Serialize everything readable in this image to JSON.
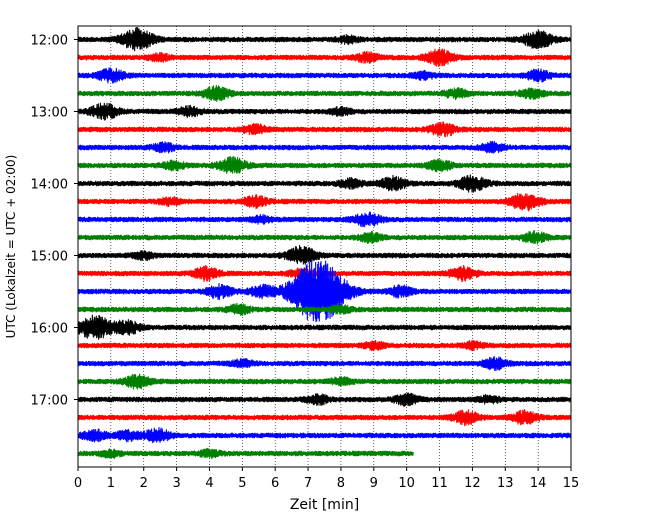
{
  "chart_data": {
    "type": "line",
    "title": "",
    "xlabel": "Zeit  [min]",
    "ylabel": "UTC (Lokalzeit = UTC + 02:00)",
    "xlim": [
      0,
      15
    ],
    "x_ticks": [
      0,
      1,
      2,
      3,
      4,
      5,
      6,
      7,
      8,
      9,
      10,
      11,
      12,
      13,
      14,
      15
    ],
    "y_ticks": [
      "12:00",
      "13:00",
      "14:00",
      "15:00",
      "16:00",
      "17:00"
    ],
    "grid": "vertical dotted",
    "row_minutes": 15,
    "trace_colors": [
      "#000000",
      "#ff0000",
      "#0000ff",
      "#008000"
    ],
    "rows": [
      {
        "start": "12:00",
        "color": "#000000",
        "end_min": 15,
        "events": [
          {
            "t": 1.8,
            "a": 1.0
          },
          {
            "t": 14.0,
            "a": 0.8
          },
          {
            "t": 8.2,
            "a": 0.3
          }
        ]
      },
      {
        "start": "12:15",
        "color": "#ff0000",
        "end_min": 15,
        "events": [
          {
            "t": 11.0,
            "a": 0.7
          },
          {
            "t": 8.8,
            "a": 0.4
          },
          {
            "t": 2.5,
            "a": 0.3
          }
        ]
      },
      {
        "start": "12:30",
        "color": "#0000ff",
        "end_min": 15,
        "events": [
          {
            "t": 1.0,
            "a": 0.6
          },
          {
            "t": 14.0,
            "a": 0.5
          },
          {
            "t": 10.5,
            "a": 0.3
          }
        ]
      },
      {
        "start": "12:45",
        "color": "#008000",
        "end_min": 15,
        "events": [
          {
            "t": 4.2,
            "a": 0.6
          },
          {
            "t": 11.5,
            "a": 0.4
          },
          {
            "t": 13.8,
            "a": 0.4
          }
        ]
      },
      {
        "start": "13:00",
        "color": "#000000",
        "end_min": 15,
        "events": [
          {
            "t": 0.8,
            "a": 0.7
          },
          {
            "t": 3.4,
            "a": 0.4
          },
          {
            "t": 8.0,
            "a": 0.3
          }
        ]
      },
      {
        "start": "13:15",
        "color": "#ff0000",
        "end_min": 15,
        "events": [
          {
            "t": 11.1,
            "a": 0.6
          },
          {
            "t": 5.4,
            "a": 0.4
          }
        ]
      },
      {
        "start": "13:30",
        "color": "#0000ff",
        "end_min": 15,
        "events": [
          {
            "t": 2.6,
            "a": 0.4
          },
          {
            "t": 12.6,
            "a": 0.4
          }
        ]
      },
      {
        "start": "13:45",
        "color": "#008000",
        "end_min": 15,
        "events": [
          {
            "t": 4.7,
            "a": 0.7
          },
          {
            "t": 11.0,
            "a": 0.5
          },
          {
            "t": 2.9,
            "a": 0.4
          }
        ]
      },
      {
        "start": "14:00",
        "color": "#000000",
        "end_min": 15,
        "events": [
          {
            "t": 9.6,
            "a": 0.6
          },
          {
            "t": 12.0,
            "a": 0.7
          },
          {
            "t": 8.3,
            "a": 0.4
          }
        ]
      },
      {
        "start": "14:15",
        "color": "#ff0000",
        "end_min": 15,
        "events": [
          {
            "t": 13.6,
            "a": 0.8
          },
          {
            "t": 5.4,
            "a": 0.5
          },
          {
            "t": 2.8,
            "a": 0.3
          }
        ]
      },
      {
        "start": "14:30",
        "color": "#0000ff",
        "end_min": 15,
        "events": [
          {
            "t": 8.8,
            "a": 0.6
          },
          {
            "t": 5.6,
            "a": 0.3
          }
        ]
      },
      {
        "start": "14:45",
        "color": "#008000",
        "end_min": 15,
        "events": [
          {
            "t": 13.9,
            "a": 0.5
          },
          {
            "t": 8.9,
            "a": 0.4
          }
        ]
      },
      {
        "start": "15:00",
        "color": "#000000",
        "end_min": 15,
        "events": [
          {
            "t": 6.8,
            "a": 0.8
          },
          {
            "t": 2.0,
            "a": 0.3
          }
        ]
      },
      {
        "start": "15:15",
        "color": "#ff0000",
        "end_min": 15,
        "events": [
          {
            "t": 3.9,
            "a": 0.6
          },
          {
            "t": 11.7,
            "a": 0.6
          },
          {
            "t": 6.8,
            "a": 0.4
          }
        ]
      },
      {
        "start": "15:30",
        "color": "#0000ff",
        "end_min": 15,
        "events": [
          {
            "t": 7.3,
            "a": 3.2
          },
          {
            "t": 4.3,
            "a": 0.6
          },
          {
            "t": 9.8,
            "a": 0.5
          },
          {
            "t": 5.6,
            "a": 0.5
          }
        ]
      },
      {
        "start": "15:45",
        "color": "#008000",
        "end_min": 15,
        "events": [
          {
            "t": 4.9,
            "a": 0.4
          },
          {
            "t": 8.0,
            "a": 0.3
          }
        ]
      },
      {
        "start": "16:00",
        "color": "#000000",
        "end_min": 15,
        "events": [
          {
            "t": 0.5,
            "a": 1.1
          },
          {
            "t": 1.5,
            "a": 0.6
          }
        ]
      },
      {
        "start": "16:15",
        "color": "#ff0000",
        "end_min": 15,
        "events": [
          {
            "t": 9.0,
            "a": 0.3
          },
          {
            "t": 12.0,
            "a": 0.3
          }
        ]
      },
      {
        "start": "16:30",
        "color": "#0000ff",
        "end_min": 15,
        "events": [
          {
            "t": 12.7,
            "a": 0.5
          },
          {
            "t": 5.0,
            "a": 0.3
          }
        ]
      },
      {
        "start": "16:45",
        "color": "#008000",
        "end_min": 15,
        "events": [
          {
            "t": 1.8,
            "a": 0.6
          },
          {
            "t": 8.0,
            "a": 0.3
          }
        ]
      },
      {
        "start": "17:00",
        "color": "#000000",
        "end_min": 15,
        "events": [
          {
            "t": 10.0,
            "a": 0.5
          },
          {
            "t": 7.3,
            "a": 0.4
          },
          {
            "t": 12.5,
            "a": 0.3
          }
        ]
      },
      {
        "start": "17:15",
        "color": "#ff0000",
        "end_min": 15,
        "events": [
          {
            "t": 11.8,
            "a": 0.6
          },
          {
            "t": 13.6,
            "a": 0.6
          }
        ]
      },
      {
        "start": "17:30",
        "color": "#0000ff",
        "end_min": 15,
        "events": [
          {
            "t": 2.4,
            "a": 0.6
          },
          {
            "t": 0.5,
            "a": 0.5
          },
          {
            "t": 1.5,
            "a": 0.4
          }
        ]
      },
      {
        "start": "17:45",
        "color": "#008000",
        "end_min": 10.2,
        "events": [
          {
            "t": 1.0,
            "a": 0.3
          },
          {
            "t": 4.0,
            "a": 0.3
          }
        ]
      }
    ]
  }
}
